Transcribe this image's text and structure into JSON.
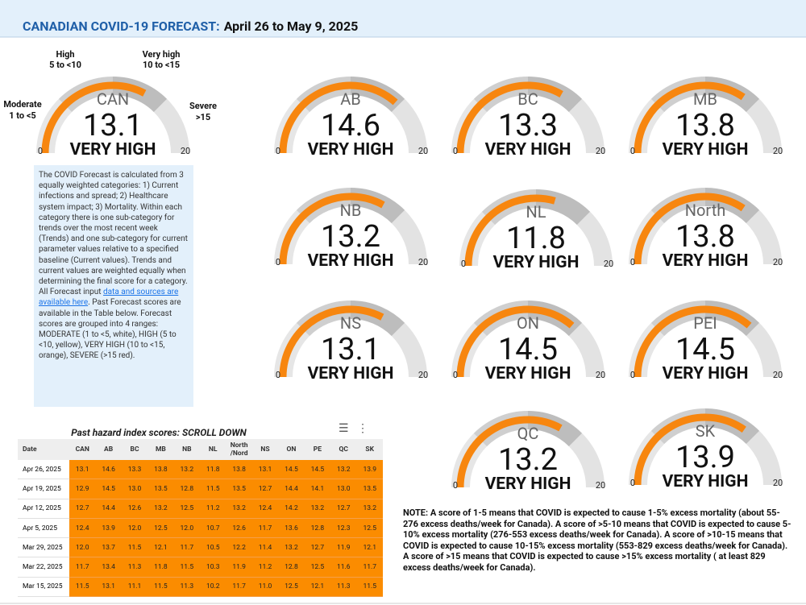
{
  "header": {
    "title": "CANADIAN COVID-19 FORECAST:",
    "dates": "April 26 to May 9, 2025"
  },
  "gauge_range": [
    0,
    20
  ],
  "ranges": [
    {
      "name": "Moderate",
      "span": "1 to <5"
    },
    {
      "name": "High",
      "span": "5 to <10"
    },
    {
      "name": "Very high",
      "span": "10 to <15"
    },
    {
      "name": "Severe",
      "span": ">15"
    }
  ],
  "gauges": [
    {
      "label": "CAN",
      "value": 13.1,
      "level": "VERY HIGH"
    },
    {
      "label": "AB",
      "value": 14.6,
      "level": "VERY HIGH"
    },
    {
      "label": "BC",
      "value": 13.3,
      "level": "VERY HIGH"
    },
    {
      "label": "MB",
      "value": 13.8,
      "level": "VERY HIGH"
    },
    {
      "label": "NB",
      "value": 13.2,
      "level": "VERY HIGH"
    },
    {
      "label": "NL",
      "value": 11.8,
      "level": "VERY HIGH"
    },
    {
      "label": "North",
      "value": 13.8,
      "level": "VERY HIGH"
    },
    {
      "label": "NS",
      "value": 13.1,
      "level": "VERY HIGH"
    },
    {
      "label": "ON",
      "value": 14.5,
      "level": "VERY HIGH"
    },
    {
      "label": "PEI",
      "value": 14.5,
      "level": "VERY HIGH"
    },
    {
      "label": "QC",
      "value": 13.2,
      "level": "VERY HIGH"
    },
    {
      "label": "SK",
      "value": 13.9,
      "level": "VERY HIGH"
    }
  ],
  "description": {
    "before": "The COVID Forecast is calculated from 3 equally weighted categories: 1) Current infections and spread; 2) Healthcare system impact; 3) Mortality. Within each category there is one sub-category for trends over the most recent week (Trends) and one sub-category for current parameter values relative to a specified baseline (Current values). Trends and current values are weighted equally when determining the final score for a category. All Forecast input ",
    "link": "data and sources are available here",
    "after": ". Past Forecast scores are available in the Table below. Forecast scores are grouped into 4 ranges: MODERATE (1 to <5, white), HIGH (5 to <10, yellow), VERY HIGH (10 to <15, orange), SEVERE (>15 red)."
  },
  "table": {
    "title": "Past hazard index scores: SCROLL DOWN",
    "columns": [
      "Date",
      "CAN",
      "AB",
      "BC",
      "MB",
      "NB",
      "NL",
      "North /Nord",
      "NS",
      "ON",
      "PE",
      "QC",
      "SK"
    ],
    "rows": [
      [
        "Apr 26, 2025",
        "13.1",
        "14.6",
        "13.3",
        "13.8",
        "13.2",
        "11.8",
        "13.8",
        "13.1",
        "14.5",
        "14.5",
        "13.2",
        "13.9"
      ],
      [
        "Apr 19, 2025",
        "12.9",
        "14.5",
        "13.0",
        "13.5",
        "12.8",
        "11.5",
        "13.5",
        "12.7",
        "14.4",
        "14.1",
        "13.0",
        "13.5"
      ],
      [
        "Apr 12, 2025",
        "12.7",
        "14.4",
        "12.6",
        "13.2",
        "12.5",
        "11.2",
        "13.2",
        "12.4",
        "14.2",
        "13.2",
        "12.7",
        "13.2"
      ],
      [
        "Apr 5, 2025",
        "12.4",
        "13.9",
        "12.0",
        "12.5",
        "12.0",
        "10.7",
        "12.6",
        "11.7",
        "13.6",
        "12.8",
        "12.3",
        "12.5"
      ],
      [
        "Mar 29, 2025",
        "12.0",
        "13.7",
        "11.5",
        "12.1",
        "11.7",
        "10.5",
        "12.2",
        "11.4",
        "13.2",
        "12.7",
        "11.9",
        "12.1"
      ],
      [
        "Mar 22, 2025",
        "11.7",
        "13.4",
        "11.3",
        "11.8",
        "11.5",
        "10.3",
        "11.9",
        "11.2",
        "12.8",
        "12.5",
        "11.6",
        "11.7"
      ],
      [
        "Mar 15, 2025",
        "11.5",
        "13.1",
        "11.1",
        "11.5",
        "11.3",
        "10.2",
        "11.7",
        "11.0",
        "12.5",
        "12.1",
        "11.3",
        "11.5"
      ]
    ]
  },
  "note": "NOTE: A score of 1-5 means that COVID is expected to cause 1-5% excess mortality (about 55-276 excess deaths/week for Canada). A score of >5-10 means that COVID is expected to cause 5-10% excess mortality (276-553 excess deaths/week for Canada). A score of >10-15 means that COVID is expected to cause 10-15% excess mortality (553-829 excess deaths/week for Canada). A score of >15 means that COVID is expected to cause >15% excess mortality ( at least 829 excess deaths/week for Canada)."
}
